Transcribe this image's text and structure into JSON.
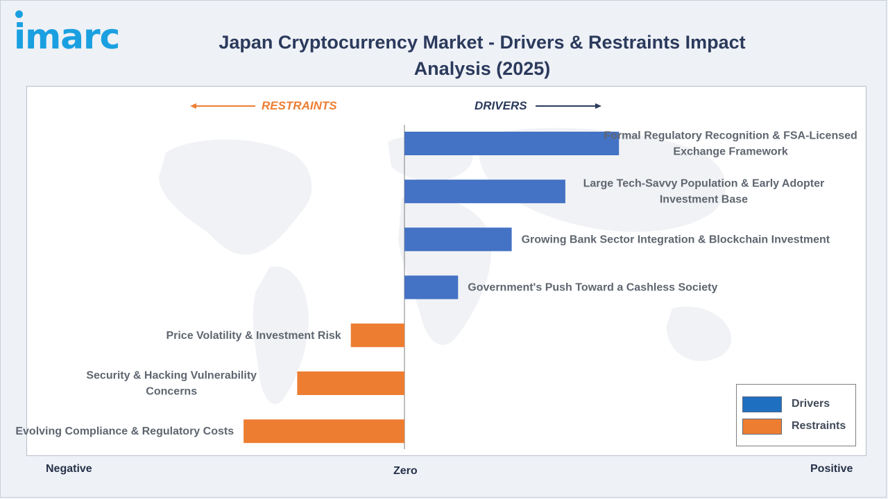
{
  "brand": {
    "logo_text": "imarc",
    "logo_color": "#1aa0e0"
  },
  "header": {
    "title": "Japan Cryptocurrency Market - Drivers & Restraints Impact Analysis (2025)",
    "title_color": "#2b3a5c"
  },
  "directions": {
    "restraints_label": "RESTRAINTS",
    "drivers_label": "DRIVERS"
  },
  "scale": {
    "negative": "Negative",
    "zero": "Zero",
    "positive": "Positive"
  },
  "colors": {
    "drivers": "#4472c4",
    "restraints": "#ed7d31",
    "label_text": "#5f6670",
    "axis": "#7f7f7f"
  },
  "legend": {
    "items": [
      {
        "label": "Drivers",
        "color": "#1f6fc0"
      },
      {
        "label": "Restraints",
        "color": "#ed7d31"
      }
    ]
  },
  "chart_data": {
    "type": "bar",
    "orientation": "horizontal",
    "title": "Japan Cryptocurrency Market - Drivers & Restraints Impact Analysis (2025)",
    "xlim": [
      -7.5,
      8
    ],
    "grid": false,
    "legend_position": "bottom-right",
    "series": [
      {
        "name": "Drivers",
        "categories": [
          "Formal Regulatory Recognition & FSA-Licensed Exchange Framework",
          "Large Tech-Savvy Population & Early Adopter Investment Base",
          "Growing Bank Sector Integration & Blockchain Investment",
          "Government's Push Toward a Cashless Society"
        ],
        "values": [
          4,
          3,
          2,
          1
        ]
      },
      {
        "name": "Restraints",
        "categories": [
          "Price Volatility & Investment Risk",
          "Security & Hacking Vulnerability Concerns",
          "Evolving Compliance & Regulatory Costs"
        ],
        "values": [
          -1,
          -2,
          -3
        ]
      }
    ]
  }
}
